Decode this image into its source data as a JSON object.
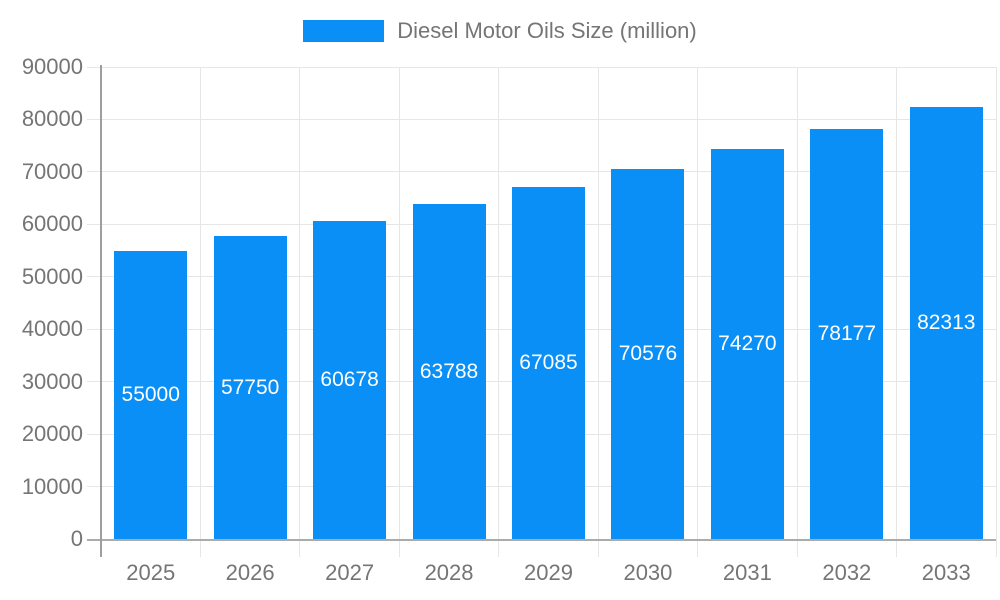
{
  "chart_data": {
    "type": "bar",
    "title": "",
    "legend": "Diesel Motor Oils Size (million)",
    "legend_position": "top",
    "categories": [
      "2025",
      "2026",
      "2027",
      "2028",
      "2029",
      "2030",
      "2031",
      "2032",
      "2033"
    ],
    "values": [
      55000,
      57750,
      60678,
      63788,
      67085,
      70576,
      74270,
      78177,
      82313
    ],
    "xlabel": "",
    "ylabel": "",
    "ylim": [
      0,
      90000
    ],
    "ytick_step": 10000,
    "ytick_labels": [
      "0",
      "10000",
      "20000",
      "30000",
      "40000",
      "50000",
      "60000",
      "70000",
      "80000",
      "90000"
    ],
    "grid": true,
    "value_labels_shown": true,
    "colors": {
      "bar": "#0a8ff7",
      "value_label": "#ffffff",
      "axis_text": "#757575",
      "gridline": "#e6e6e6",
      "y_axis_line": "#9e9e9e",
      "x_axis_line": "#ababab",
      "background": "#ffffff"
    }
  }
}
